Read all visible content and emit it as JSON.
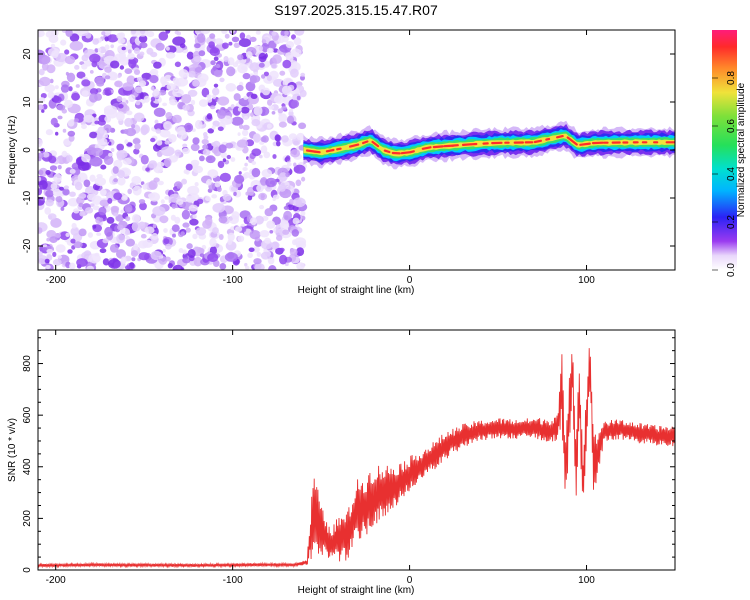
{
  "title": "S197.2025.315.15.47.R07",
  "spectrogram": {
    "type": "heatmap",
    "xlabel": "Height of straight line (km)",
    "ylabel": "Frequency (Hz)",
    "xlim": [
      -210,
      150
    ],
    "ylim": [
      -25,
      25
    ],
    "xticks": [
      -200,
      -100,
      0,
      100
    ],
    "xtick_labels": [
      "-200",
      "-100",
      "0",
      "100"
    ],
    "yticks": [
      -20,
      -10,
      0,
      10,
      20
    ],
    "ytick_labels": [
      "-20",
      "-10",
      "0",
      "10",
      "20"
    ],
    "noise_region_x": [
      -210,
      -60
    ],
    "signal_region_x": [
      -60,
      150
    ],
    "signal_trace": [
      {
        "x": -60,
        "y": 0.0
      },
      {
        "x": -50,
        "y": -0.5
      },
      {
        "x": -40,
        "y": 0.2
      },
      {
        "x": -30,
        "y": 1.0
      },
      {
        "x": -22,
        "y": 2.0
      },
      {
        "x": -15,
        "y": 0.0
      },
      {
        "x": -8,
        "y": -0.8
      },
      {
        "x": 0,
        "y": -0.5
      },
      {
        "x": 10,
        "y": 0.5
      },
      {
        "x": 20,
        "y": 0.8
      },
      {
        "x": 35,
        "y": 1.2
      },
      {
        "x": 50,
        "y": 1.5
      },
      {
        "x": 70,
        "y": 1.6
      },
      {
        "x": 88,
        "y": 3.0
      },
      {
        "x": 95,
        "y": 1.0
      },
      {
        "x": 105,
        "y": 1.5
      },
      {
        "x": 130,
        "y": 1.6
      },
      {
        "x": 150,
        "y": 1.6
      }
    ]
  },
  "colorbar": {
    "label": "Normalized spectral amplitude",
    "ticks": [
      0.0,
      0.2,
      0.4,
      0.6,
      0.8
    ],
    "tick_labels": [
      "0.0",
      "0.2",
      "0.4",
      "0.6",
      "0.8"
    ],
    "range": [
      0,
      1
    ]
  },
  "chart_data": {
    "type": "line",
    "title": "S197.2025.315.15.47.R07",
    "xlabel": "Height of straight line (km)",
    "ylabel": "SNR (10 * v/v)",
    "xlim": [
      -210,
      150
    ],
    "ylim": [
      0,
      930
    ],
    "xticks": [
      -200,
      -100,
      0,
      100
    ],
    "xtick_labels": [
      "-200",
      "-100",
      "0",
      "100"
    ],
    "yticks": [
      0,
      200,
      400,
      600,
      800
    ],
    "ytick_labels": [
      "0",
      "200",
      "400",
      "600",
      "800"
    ],
    "series": [
      {
        "name": "SNR",
        "color": "#e83030",
        "x": [
          -210,
          -180,
          -150,
          -120,
          -90,
          -65,
          -58,
          -54,
          -50,
          -45,
          -40,
          -35,
          -30,
          -25,
          -20,
          -15,
          -10,
          -5,
          0,
          5,
          10,
          15,
          20,
          25,
          30,
          35,
          40,
          50,
          60,
          70,
          80,
          84,
          86,
          88,
          90,
          92,
          94,
          96,
          98,
          100,
          102,
          104,
          110,
          120,
          130,
          140,
          150
        ],
        "values": [
          18,
          20,
          19,
          18,
          20,
          20,
          30,
          230,
          150,
          100,
          120,
          130,
          230,
          250,
          290,
          300,
          320,
          340,
          370,
          400,
          420,
          450,
          480,
          500,
          520,
          530,
          540,
          550,
          545,
          550,
          540,
          560,
          720,
          350,
          600,
          800,
          400,
          700,
          320,
          600,
          810,
          400,
          540,
          545,
          530,
          520,
          520
        ],
        "half_range": [
          6,
          6,
          6,
          6,
          6,
          6,
          10,
          180,
          100,
          60,
          90,
          100,
          120,
          120,
          120,
          110,
          90,
          80,
          70,
          60,
          60,
          55,
          55,
          50,
          45,
          45,
          40,
          40,
          40,
          40,
          50,
          60,
          140,
          120,
          140,
          120,
          140,
          140,
          120,
          120,
          120,
          120,
          40,
          40,
          40,
          40,
          40
        ]
      }
    ],
    "grid": false
  }
}
